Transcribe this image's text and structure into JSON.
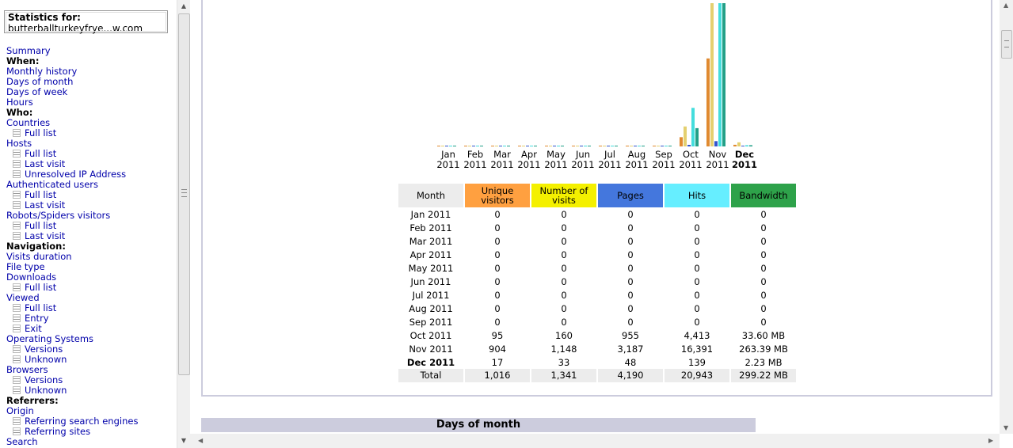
{
  "sidebar": {
    "stats_title": "Statistics for:",
    "site": "butterballturkeyfrye...w.com",
    "items": [
      {
        "type": "link",
        "label": "Summary"
      },
      {
        "type": "header",
        "label": "When:"
      },
      {
        "type": "link",
        "label": "Monthly history"
      },
      {
        "type": "link",
        "label": "Days of month"
      },
      {
        "type": "link",
        "label": "Days of week"
      },
      {
        "type": "link",
        "label": "Hours"
      },
      {
        "type": "header",
        "label": "Who:"
      },
      {
        "type": "link",
        "label": "Countries"
      },
      {
        "type": "sub",
        "label": "Full list"
      },
      {
        "type": "link",
        "label": "Hosts"
      },
      {
        "type": "sub",
        "label": "Full list"
      },
      {
        "type": "sub",
        "label": "Last visit"
      },
      {
        "type": "sub",
        "label": "Unresolved IP Address"
      },
      {
        "type": "link",
        "label": "Authenticated users"
      },
      {
        "type": "sub",
        "label": "Full list"
      },
      {
        "type": "sub",
        "label": "Last visit"
      },
      {
        "type": "link",
        "label": "Robots/Spiders visitors"
      },
      {
        "type": "sub",
        "label": "Full list"
      },
      {
        "type": "sub",
        "label": "Last visit"
      },
      {
        "type": "header",
        "label": "Navigation:"
      },
      {
        "type": "link",
        "label": "Visits duration"
      },
      {
        "type": "link",
        "label": "File type"
      },
      {
        "type": "link",
        "label": "Downloads"
      },
      {
        "type": "sub",
        "label": "Full list"
      },
      {
        "type": "link",
        "label": "Viewed"
      },
      {
        "type": "sub",
        "label": "Full list"
      },
      {
        "type": "sub",
        "label": "Entry"
      },
      {
        "type": "sub",
        "label": "Exit"
      },
      {
        "type": "link",
        "label": "Operating Systems"
      },
      {
        "type": "sub",
        "label": "Versions"
      },
      {
        "type": "sub",
        "label": "Unknown"
      },
      {
        "type": "link",
        "label": "Browsers"
      },
      {
        "type": "sub",
        "label": "Versions"
      },
      {
        "type": "sub",
        "label": "Unknown"
      },
      {
        "type": "header",
        "label": "Referrers:"
      },
      {
        "type": "link",
        "label": "Origin"
      },
      {
        "type": "sub",
        "label": "Referring search engines"
      },
      {
        "type": "sub",
        "label": "Referring sites"
      },
      {
        "type": "link",
        "label": "Search"
      }
    ]
  },
  "chart_data": {
    "type": "bar",
    "categories": [
      "Jan 2011",
      "Feb 2011",
      "Mar 2011",
      "Apr 2011",
      "May 2011",
      "Jun 2011",
      "Jul 2011",
      "Aug 2011",
      "Sep 2011",
      "Oct 2011",
      "Nov 2011",
      "Dec 2011"
    ],
    "category_lines": [
      [
        "Jan",
        "2011"
      ],
      [
        "Feb",
        "2011"
      ],
      [
        "Mar",
        "2011"
      ],
      [
        "Apr",
        "2011"
      ],
      [
        "May",
        "2011"
      ],
      [
        "Jun",
        "2011"
      ],
      [
        "Jul",
        "2011"
      ],
      [
        "Aug",
        "2011"
      ],
      [
        "Sep",
        "2011"
      ],
      [
        "Oct",
        "2011"
      ],
      [
        "Nov",
        "2011"
      ],
      [
        "Dec",
        "2011"
      ]
    ],
    "highlight_category": "Dec 2011",
    "series": [
      {
        "key": "unique",
        "color": "#e08a30",
        "values": [
          0,
          0,
          0,
          0,
          0,
          0,
          0,
          0,
          0,
          95,
          904,
          17
        ]
      },
      {
        "key": "visits",
        "color": "#e4d070",
        "values": [
          0,
          0,
          0,
          0,
          0,
          0,
          0,
          0,
          0,
          160,
          1148,
          33
        ]
      },
      {
        "key": "pages",
        "color": "#3355cc",
        "values": [
          0,
          0,
          0,
          0,
          0,
          0,
          0,
          0,
          0,
          955,
          3187,
          48
        ]
      },
      {
        "key": "hits",
        "color": "#44dddd",
        "values": [
          0,
          0,
          0,
          0,
          0,
          0,
          0,
          0,
          0,
          4413,
          16391,
          139
        ]
      },
      {
        "key": "bandwidth",
        "color": "#22a088",
        "values": [
          0,
          0,
          0,
          0,
          0,
          0,
          0,
          0,
          0,
          33.6,
          263.39,
          2.23
        ]
      }
    ]
  },
  "table": {
    "headers": {
      "month": "Month",
      "unique": "Unique visitors",
      "visits": "Number of visits",
      "pages": "Pages",
      "hits": "Hits",
      "bandwidth": "Bandwidth"
    },
    "rows": [
      {
        "month": "Jan 2011",
        "unique": "0",
        "visits": "0",
        "pages": "0",
        "hits": "0",
        "bandwidth": "0"
      },
      {
        "month": "Feb 2011",
        "unique": "0",
        "visits": "0",
        "pages": "0",
        "hits": "0",
        "bandwidth": "0"
      },
      {
        "month": "Mar 2011",
        "unique": "0",
        "visits": "0",
        "pages": "0",
        "hits": "0",
        "bandwidth": "0"
      },
      {
        "month": "Apr 2011",
        "unique": "0",
        "visits": "0",
        "pages": "0",
        "hits": "0",
        "bandwidth": "0"
      },
      {
        "month": "May 2011",
        "unique": "0",
        "visits": "0",
        "pages": "0",
        "hits": "0",
        "bandwidth": "0"
      },
      {
        "month": "Jun 2011",
        "unique": "0",
        "visits": "0",
        "pages": "0",
        "hits": "0",
        "bandwidth": "0"
      },
      {
        "month": "Jul 2011",
        "unique": "0",
        "visits": "0",
        "pages": "0",
        "hits": "0",
        "bandwidth": "0"
      },
      {
        "month": "Aug 2011",
        "unique": "0",
        "visits": "0",
        "pages": "0",
        "hits": "0",
        "bandwidth": "0"
      },
      {
        "month": "Sep 2011",
        "unique": "0",
        "visits": "0",
        "pages": "0",
        "hits": "0",
        "bandwidth": "0"
      },
      {
        "month": "Oct 2011",
        "unique": "95",
        "visits": "160",
        "pages": "955",
        "hits": "4,413",
        "bandwidth": "33.60 MB"
      },
      {
        "month": "Nov 2011",
        "unique": "904",
        "visits": "1,148",
        "pages": "3,187",
        "hits": "16,391",
        "bandwidth": "263.39 MB"
      },
      {
        "month": "Dec 2011",
        "unique": "17",
        "visits": "33",
        "pages": "48",
        "hits": "139",
        "bandwidth": "2.23 MB",
        "bold": true
      }
    ],
    "total": {
      "month": "Total",
      "unique": "1,016",
      "visits": "1,341",
      "pages": "4,190",
      "hits": "20,943",
      "bandwidth": "299.22 MB"
    }
  },
  "days_section": {
    "title": "Days of month"
  }
}
